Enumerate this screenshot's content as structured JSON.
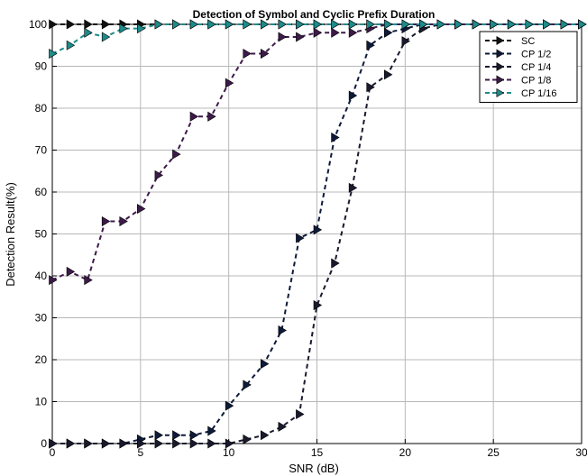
{
  "chart_data": {
    "type": "line",
    "title": "Detection of Symbol and Cyclic Prefix Duration",
    "xlabel": "SNR (dB)",
    "ylabel": "Detection Result(%)",
    "xlim": [
      0,
      30
    ],
    "ylim": [
      0,
      100
    ],
    "xticks": [
      0,
      5,
      10,
      15,
      20,
      25,
      30
    ],
    "yticks": [
      0,
      10,
      20,
      30,
      40,
      50,
      60,
      70,
      80,
      90,
      100
    ],
    "grid": true,
    "legend_position": "top-right",
    "marker": "right-pointing-triangle",
    "line_style": "dashed",
    "series": [
      {
        "name": "SC",
        "color": "#111111",
        "x": [
          0,
          1,
          2,
          3,
          4,
          5,
          6,
          7,
          8,
          9,
          10,
          11,
          12,
          13,
          14,
          15,
          16,
          17,
          18,
          19,
          20,
          21,
          22,
          23,
          24,
          25,
          26,
          27,
          28,
          29,
          30
        ],
        "y": [
          100,
          100,
          100,
          100,
          100,
          100,
          100,
          100,
          100,
          100,
          100,
          100,
          100,
          100,
          100,
          100,
          100,
          100,
          100,
          100,
          100,
          100,
          100,
          100,
          100,
          100,
          100,
          100,
          100,
          100,
          100
        ]
      },
      {
        "name": "CP 1/2",
        "color": "#0d1a3a",
        "x": [
          0,
          1,
          2,
          3,
          4,
          5,
          6,
          7,
          8,
          9,
          10,
          11,
          12,
          13,
          14,
          15,
          16,
          17,
          18,
          19,
          20,
          21,
          22,
          23,
          24,
          25,
          26,
          27,
          28,
          29,
          30
        ],
        "y": [
          0,
          0,
          0,
          0,
          0,
          1,
          2,
          2,
          2,
          3,
          9,
          14,
          19,
          27,
          49,
          51,
          73,
          83,
          95,
          98,
          99,
          100,
          100,
          100,
          100,
          100,
          100,
          100,
          100,
          100,
          100
        ]
      },
      {
        "name": "CP 1/4",
        "color": "#1a1a2e",
        "x": [
          0,
          1,
          2,
          3,
          4,
          5,
          6,
          7,
          8,
          9,
          10,
          11,
          12,
          13,
          14,
          15,
          16,
          17,
          18,
          19,
          20,
          21,
          22,
          23,
          24,
          25,
          26,
          27,
          28,
          29,
          30
        ],
        "y": [
          0,
          0,
          0,
          0,
          0,
          0,
          0,
          0,
          0,
          0,
          0,
          1,
          2,
          4,
          7,
          33,
          43,
          61,
          85,
          88,
          96,
          99,
          100,
          100,
          100,
          100,
          100,
          100,
          100,
          100,
          100
        ]
      },
      {
        "name": "CP 1/8",
        "color": "#3d1a4a",
        "x": [
          0,
          1,
          2,
          3,
          4,
          5,
          6,
          7,
          8,
          9,
          10,
          11,
          12,
          13,
          14,
          15,
          16,
          17,
          18,
          19,
          20,
          21,
          22,
          23,
          24,
          25,
          26,
          27,
          28,
          29,
          30
        ],
        "y": [
          39,
          41,
          39,
          53,
          53,
          56,
          64,
          69,
          78,
          78,
          86,
          93,
          93,
          97,
          97,
          98,
          98,
          98,
          99,
          100,
          100,
          100,
          100,
          100,
          100,
          100,
          100,
          100,
          100,
          100,
          100
        ]
      },
      {
        "name": "CP 1/16",
        "color": "#1f8a8a",
        "x": [
          0,
          1,
          2,
          3,
          4,
          5,
          6,
          7,
          8,
          9,
          10,
          11,
          12,
          13,
          14,
          15,
          16,
          17,
          18,
          19,
          20,
          21,
          22,
          23,
          24,
          25,
          26,
          27,
          28,
          29,
          30
        ],
        "y": [
          93,
          95,
          98,
          97,
          99,
          99,
          100,
          100,
          100,
          100,
          100,
          100,
          100,
          100,
          100,
          100,
          100,
          100,
          100,
          100,
          100,
          100,
          100,
          100,
          100,
          100,
          100,
          100,
          100,
          100,
          100
        ]
      }
    ]
  }
}
